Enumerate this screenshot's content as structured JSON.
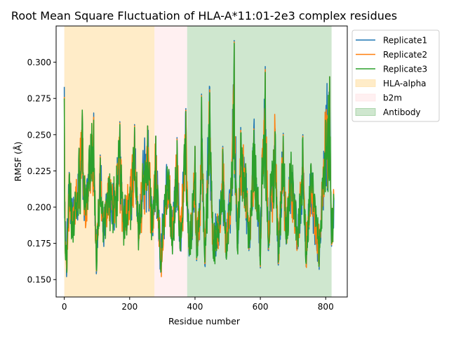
{
  "chart_data": {
    "type": "line",
    "title": "Root Mean Square Fluctuation of HLA-A*11:01-2e3 complex residues",
    "xlabel": "Residue number",
    "ylabel": "RMSF (Å)",
    "xlim": [
      -25,
      866
    ],
    "ylim": [
      0.138,
      0.325
    ],
    "xticks": [
      0,
      200,
      400,
      600,
      800
    ],
    "yticks": [
      0.15,
      0.175,
      0.2,
      0.225,
      0.25,
      0.275,
      0.3
    ],
    "xtick_labels": [
      "0",
      "200",
      "400",
      "600",
      "800"
    ],
    "ytick_labels": [
      "0.150",
      "0.175",
      "0.200",
      "0.225",
      "0.250",
      "0.275",
      "0.300"
    ],
    "grid": false,
    "legend_position": "outside-upper-right",
    "regions": [
      {
        "name": "HLA-alpha",
        "x_start": 0,
        "x_end": 276,
        "color": "#ffe4b0",
        "alpha": 0.7
      },
      {
        "name": "b2m",
        "x_start": 276,
        "x_end": 376,
        "color": "#ffe6e8",
        "alpha": 0.6
      },
      {
        "name": "Antibody",
        "x_start": 376,
        "x_end": 818,
        "color": "#9fcf9f",
        "alpha": 0.5
      }
    ],
    "series": [
      {
        "name": "Replicate1",
        "color": "#1f77b4",
        "n_points": 819,
        "anchors": [
          [
            0,
            0.283
          ],
          [
            3,
            0.17
          ],
          [
            8,
            0.158
          ],
          [
            15,
            0.224
          ],
          [
            25,
            0.192
          ],
          [
            40,
            0.21
          ],
          [
            55,
            0.265
          ],
          [
            60,
            0.205
          ],
          [
            75,
            0.23
          ],
          [
            90,
            0.265
          ],
          [
            98,
            0.154
          ],
          [
            110,
            0.236
          ],
          [
            120,
            0.18
          ],
          [
            135,
            0.22
          ],
          [
            155,
            0.205
          ],
          [
            170,
            0.259
          ],
          [
            180,
            0.19
          ],
          [
            200,
            0.208
          ],
          [
            215,
            0.257
          ],
          [
            228,
            0.177
          ],
          [
            240,
            0.23
          ],
          [
            255,
            0.256
          ],
          [
            270,
            0.182
          ],
          [
            280,
            0.249
          ],
          [
            295,
            0.155
          ],
          [
            310,
            0.215
          ],
          [
            320,
            0.226
          ],
          [
            330,
            0.176
          ],
          [
            345,
            0.248
          ],
          [
            355,
            0.17
          ],
          [
            372,
            0.268
          ],
          [
            378,
            0.192
          ],
          [
            383,
            0.17
          ],
          [
            393,
            0.2
          ],
          [
            400,
            0.242
          ],
          [
            405,
            0.163
          ],
          [
            415,
            0.198
          ],
          [
            420,
            0.278
          ],
          [
            430,
            0.16
          ],
          [
            445,
            0.283
          ],
          [
            455,
            0.17
          ],
          [
            465,
            0.175
          ],
          [
            480,
            0.2
          ],
          [
            485,
            0.242
          ],
          [
            495,
            0.165
          ],
          [
            510,
            0.22
          ],
          [
            520,
            0.315
          ],
          [
            530,
            0.17
          ],
          [
            540,
            0.255
          ],
          [
            555,
            0.23
          ],
          [
            565,
            0.17
          ],
          [
            580,
            0.255
          ],
          [
            595,
            0.2
          ],
          [
            600,
            0.158
          ],
          [
            605,
            0.236
          ],
          [
            615,
            0.297
          ],
          [
            625,
            0.17
          ],
          [
            630,
            0.205
          ],
          [
            645,
            0.254
          ],
          [
            655,
            0.16
          ],
          [
            670,
            0.251
          ],
          [
            680,
            0.175
          ],
          [
            690,
            0.23
          ],
          [
            700,
            0.22
          ],
          [
            715,
            0.173
          ],
          [
            730,
            0.25
          ],
          [
            740,
            0.159
          ],
          [
            755,
            0.23
          ],
          [
            765,
            0.2
          ],
          [
            780,
            0.157
          ],
          [
            790,
            0.22
          ],
          [
            800,
            0.262
          ],
          [
            812,
            0.29
          ],
          [
            818,
            0.173
          ],
          [
            825,
            0.205
          ]
        ]
      },
      {
        "name": "Replicate2",
        "color": "#ff7f0e",
        "n_points": 819,
        "anchors": [
          [
            0,
            0.276
          ],
          [
            3,
            0.168
          ],
          [
            8,
            0.156
          ],
          [
            15,
            0.223
          ],
          [
            25,
            0.19
          ],
          [
            40,
            0.21
          ],
          [
            55,
            0.266
          ],
          [
            60,
            0.205
          ],
          [
            75,
            0.23
          ],
          [
            90,
            0.262
          ],
          [
            98,
            0.156
          ],
          [
            110,
            0.235
          ],
          [
            120,
            0.18
          ],
          [
            135,
            0.22
          ],
          [
            155,
            0.205
          ],
          [
            170,
            0.258
          ],
          [
            180,
            0.19
          ],
          [
            200,
            0.208
          ],
          [
            215,
            0.256
          ],
          [
            228,
            0.178
          ],
          [
            240,
            0.23
          ],
          [
            255,
            0.256
          ],
          [
            270,
            0.183
          ],
          [
            280,
            0.249
          ],
          [
            295,
            0.156
          ],
          [
            310,
            0.215
          ],
          [
            320,
            0.226
          ],
          [
            330,
            0.176
          ],
          [
            345,
            0.247
          ],
          [
            355,
            0.17
          ],
          [
            372,
            0.267
          ],
          [
            378,
            0.191
          ],
          [
            383,
            0.168
          ],
          [
            393,
            0.2
          ],
          [
            400,
            0.242
          ],
          [
            405,
            0.164
          ],
          [
            415,
            0.198
          ],
          [
            420,
            0.277
          ],
          [
            430,
            0.161
          ],
          [
            445,
            0.281
          ],
          [
            455,
            0.17
          ],
          [
            465,
            0.176
          ],
          [
            480,
            0.2
          ],
          [
            485,
            0.241
          ],
          [
            495,
            0.166
          ],
          [
            510,
            0.22
          ],
          [
            520,
            0.314
          ],
          [
            530,
            0.17
          ],
          [
            540,
            0.253
          ],
          [
            555,
            0.23
          ],
          [
            565,
            0.171
          ],
          [
            580,
            0.254
          ],
          [
            595,
            0.2
          ],
          [
            600,
            0.159
          ],
          [
            605,
            0.235
          ],
          [
            615,
            0.295
          ],
          [
            625,
            0.171
          ],
          [
            630,
            0.205
          ],
          [
            645,
            0.253
          ],
          [
            655,
            0.161
          ],
          [
            670,
            0.25
          ],
          [
            680,
            0.175
          ],
          [
            690,
            0.23
          ],
          [
            700,
            0.22
          ],
          [
            715,
            0.174
          ],
          [
            730,
            0.249
          ],
          [
            740,
            0.16
          ],
          [
            755,
            0.23
          ],
          [
            765,
            0.2
          ],
          [
            780,
            0.159
          ],
          [
            790,
            0.22
          ],
          [
            800,
            0.261
          ],
          [
            812,
            0.29
          ],
          [
            818,
            0.174
          ],
          [
            825,
            0.205
          ]
        ]
      },
      {
        "name": "Replicate3",
        "color": "#2ca02c",
        "n_points": 819,
        "anchors": [
          [
            0,
            0.275
          ],
          [
            3,
            0.169
          ],
          [
            8,
            0.155
          ],
          [
            15,
            0.222
          ],
          [
            25,
            0.19
          ],
          [
            40,
            0.21
          ],
          [
            55,
            0.267
          ],
          [
            60,
            0.205
          ],
          [
            75,
            0.23
          ],
          [
            90,
            0.26
          ],
          [
            98,
            0.157
          ],
          [
            110,
            0.234
          ],
          [
            120,
            0.18
          ],
          [
            135,
            0.22
          ],
          [
            155,
            0.205
          ],
          [
            170,
            0.257
          ],
          [
            180,
            0.19
          ],
          [
            200,
            0.208
          ],
          [
            215,
            0.255
          ],
          [
            228,
            0.179
          ],
          [
            240,
            0.23
          ],
          [
            255,
            0.256
          ],
          [
            270,
            0.184
          ],
          [
            280,
            0.249
          ],
          [
            295,
            0.157
          ],
          [
            310,
            0.215
          ],
          [
            320,
            0.226
          ],
          [
            330,
            0.176
          ],
          [
            345,
            0.246
          ],
          [
            355,
            0.17
          ],
          [
            372,
            0.266
          ],
          [
            378,
            0.19
          ],
          [
            383,
            0.167
          ],
          [
            393,
            0.2
          ],
          [
            400,
            0.242
          ],
          [
            405,
            0.165
          ],
          [
            415,
            0.198
          ],
          [
            420,
            0.276
          ],
          [
            430,
            0.162
          ],
          [
            445,
            0.279
          ],
          [
            455,
            0.17
          ],
          [
            465,
            0.177
          ],
          [
            480,
            0.2
          ],
          [
            485,
            0.24
          ],
          [
            495,
            0.167
          ],
          [
            510,
            0.22
          ],
          [
            520,
            0.313
          ],
          [
            530,
            0.17
          ],
          [
            540,
            0.251
          ],
          [
            555,
            0.23
          ],
          [
            565,
            0.172
          ],
          [
            580,
            0.253
          ],
          [
            595,
            0.2
          ],
          [
            600,
            0.16
          ],
          [
            605,
            0.234
          ],
          [
            615,
            0.293
          ],
          [
            625,
            0.172
          ],
          [
            630,
            0.205
          ],
          [
            645,
            0.252
          ],
          [
            655,
            0.162
          ],
          [
            670,
            0.249
          ],
          [
            680,
            0.175
          ],
          [
            690,
            0.23
          ],
          [
            700,
            0.22
          ],
          [
            715,
            0.175
          ],
          [
            730,
            0.248
          ],
          [
            740,
            0.161
          ],
          [
            755,
            0.23
          ],
          [
            765,
            0.2
          ],
          [
            780,
            0.161
          ],
          [
            790,
            0.22
          ],
          [
            800,
            0.26
          ],
          [
            812,
            0.29
          ],
          [
            818,
            0.175
          ],
          [
            825,
            0.205
          ]
        ]
      }
    ]
  }
}
